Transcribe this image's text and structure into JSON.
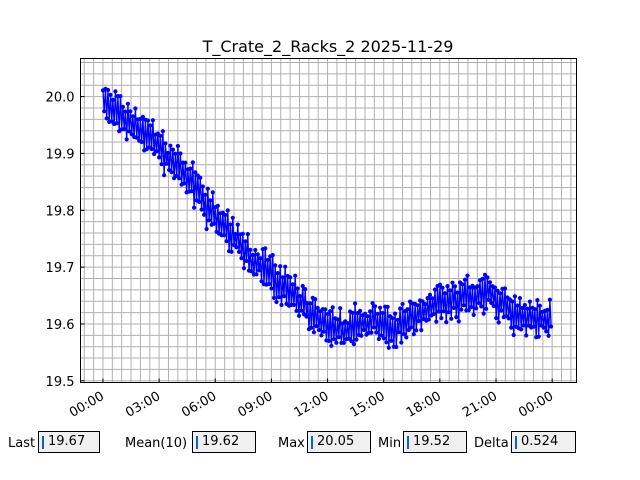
{
  "chart_data": {
    "type": "line",
    "title": "T_Crate_2_Racks_2 2025-11-29",
    "xlabel": "",
    "ylabel": "",
    "x_ticks": [
      "00:00",
      "03:00",
      "06:00",
      "09:00",
      "12:00",
      "15:00",
      "18:00",
      "21:00",
      "00:00"
    ],
    "y_ticks": [
      "19.5",
      "19.6",
      "19.7",
      "19.8",
      "19.9",
      "20.0"
    ],
    "xlim_hours": [
      -1.2,
      25.3
    ],
    "ylim": [
      19.497,
      20.067
    ],
    "grid": true,
    "color": "#0000ff",
    "series": [
      {
        "values_note": "approximate trend with oscillation",
        "x_hours": [
          0.0,
          0.5,
          1.0,
          1.5,
          2.0,
          2.5,
          3.0,
          3.5,
          4.0,
          4.5,
          5.0,
          5.5,
          6.0,
          6.5,
          7.0,
          7.5,
          8.0,
          8.5,
          9.0,
          9.5,
          10.0,
          10.5,
          11.0,
          11.5,
          12.0,
          12.5,
          13.0,
          13.5,
          14.0,
          14.5,
          15.0,
          15.5,
          16.0,
          16.5,
          17.0,
          17.5,
          18.0,
          18.5,
          19.0,
          19.5,
          20.0,
          20.5,
          21.0,
          21.5,
          22.0,
          22.5,
          23.0,
          23.5,
          24.0
        ],
        "y_values": [
          19.99,
          19.98,
          19.96,
          19.95,
          19.94,
          19.93,
          19.91,
          19.89,
          19.88,
          19.86,
          19.84,
          19.81,
          19.79,
          19.77,
          19.75,
          19.73,
          19.71,
          19.7,
          19.69,
          19.67,
          19.66,
          19.64,
          19.62,
          19.61,
          19.6,
          19.59,
          19.59,
          19.6,
          19.6,
          19.61,
          19.6,
          19.59,
          19.6,
          19.61,
          19.62,
          19.63,
          19.64,
          19.64,
          19.64,
          19.65,
          19.65,
          19.66,
          19.64,
          19.63,
          19.62,
          19.61,
          19.61,
          19.61,
          19.61
        ]
      }
    ]
  },
  "stats": {
    "last_label": "Last",
    "last_value": "19.67",
    "mean_label": "Mean(10)",
    "mean_value": "19.62",
    "max_label": "Max",
    "max_value": "20.05",
    "min_label": "Min",
    "min_value": "19.52",
    "delta_label": "Delta",
    "delta_value": "0.524"
  }
}
